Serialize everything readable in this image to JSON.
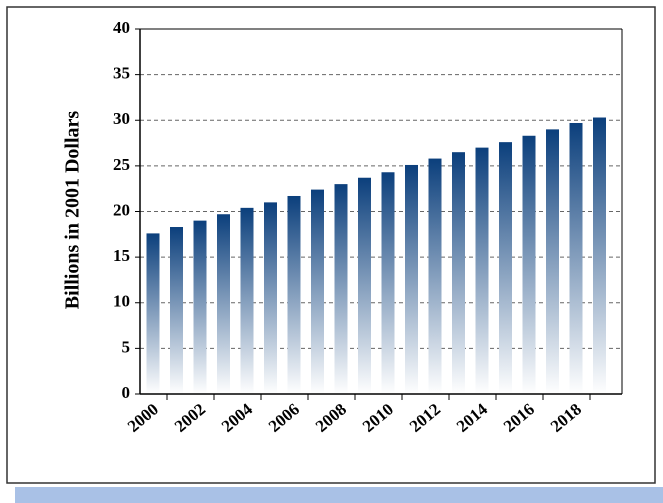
{
  "chart_data": {
    "type": "bar",
    "y_label": "Billions in 2001 Dollars",
    "categories": [
      "2000",
      null,
      "2002",
      null,
      "2004",
      null,
      "2006",
      null,
      "2008",
      null,
      "2010",
      null,
      "2012",
      null,
      "2014",
      null,
      "2016",
      null,
      "2018",
      null
    ],
    "values": [
      17.6,
      18.3,
      19.0,
      19.7,
      20.4,
      21.0,
      21.7,
      22.4,
      23.0,
      23.7,
      24.3,
      25.1,
      25.8,
      26.5,
      27.0,
      27.6,
      28.3,
      29.0,
      29.7,
      30.3
    ],
    "color": "#0b3f7c",
    "ylim": [
      0,
      40
    ],
    "yticks": [
      0,
      5,
      10,
      15,
      20,
      25,
      30,
      35,
      40
    ],
    "grid": true
  }
}
